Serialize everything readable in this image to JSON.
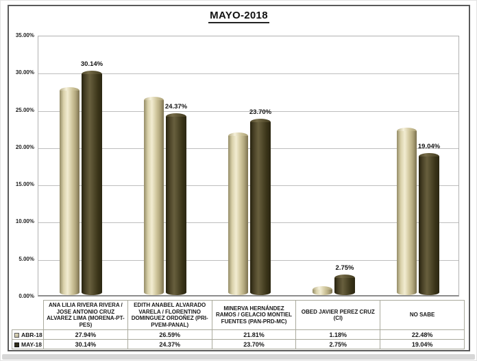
{
  "page": {
    "title": "MAYO-2018"
  },
  "chart_data": {
    "type": "bar",
    "subtype": "cylinder-3d",
    "title": "MAYO-2018",
    "categories": [
      "ANA LILIA RIVERA RIVERA / JOSE ANTONIO CRUZ ALVAREZ LIMA (MORENA-PT-PES)",
      "EDITH ANABEL ALVARADO VARELA / FLORENTINO DOMINGUEZ ORDOÑEZ (PRI-PVEM-PANAL)",
      "MINERVA HERNÁNDEZ RAMOS / GELACIO MONTIEL FUENTES (PAN-PRD-MC)",
      "OBED JAVIER PEREZ CRUZ (CI)",
      "NO SABE"
    ],
    "series": [
      {
        "name": "ABR-18",
        "values": [
          27.94,
          26.59,
          21.81,
          1.18,
          22.48
        ]
      },
      {
        "name": "MAY-18",
        "values": [
          30.14,
          24.37,
          23.7,
          2.75,
          19.04
        ]
      }
    ],
    "value_labels": [
      "30.14%",
      "24.37%",
      "23.70%",
      "2.75%",
      "19.04%"
    ],
    "value_labels_on_series": "MAY-18",
    "y_ticks": [
      "35.00%",
      "30.00%",
      "25.00%",
      "20.00%",
      "15.00%",
      "10.00%",
      "5.00%",
      "0.00%"
    ],
    "ylim": [
      0,
      35
    ],
    "grid": true,
    "legend_position": "data-table-left"
  },
  "table": {
    "row_headers": [
      "ABR-18",
      "MAY-18"
    ],
    "rows": [
      [
        "27.94%",
        "26.59%",
        "21.81%",
        "1.18%",
        "22.48%"
      ],
      [
        "30.14%",
        "24.37%",
        "23.70%",
        "2.75%",
        "19.04%"
      ]
    ]
  },
  "colors": {
    "abr_body": [
      "#958c67",
      "#d9d1aa",
      "#f2ecd2",
      "#d4cba2",
      "#b2a77d",
      "#7b714f"
    ],
    "abr_cap": [
      "#b5ab82",
      "#f6f1da",
      "#cdc399",
      "#a99f76"
    ],
    "may_body": [
      "#27220f",
      "#4c4428",
      "#685f3e",
      "#514a2b",
      "#3a3419",
      "#2b2712"
    ],
    "may_cap": [
      "#4a4227",
      "#766c49",
      "#5a5232",
      "#453e23"
    ],
    "gridline": "#bdbdbd",
    "axis_line": "#8c8c8c",
    "table_border": "#a9a99c",
    "frame_border": "#5a5a5a",
    "bottom_strip": "#d7d7d7",
    "text": "#1c1c1c"
  }
}
